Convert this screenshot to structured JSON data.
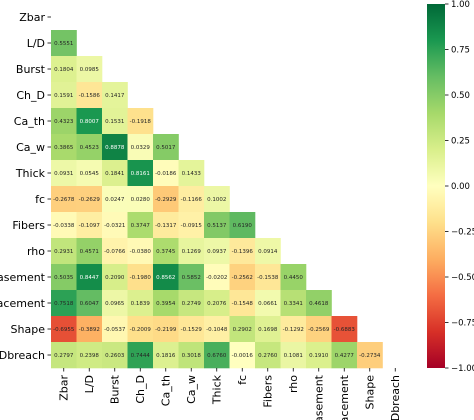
{
  "chart_data": {
    "type": "heatmap",
    "title": "",
    "xlabel": "",
    "ylabel": "",
    "variables": [
      "Zbar",
      "L/D",
      "Burst",
      "Ch_D",
      "Ca_th",
      "Ca_w",
      "Thick",
      "fc",
      "Fibers",
      "rho",
      "Casement",
      "Placement",
      "Shape",
      "Dbreach"
    ],
    "mask": "upper-triangle-including-diagonal",
    "lower_triangle": [
      [],
      [
        0.5551
      ],
      [
        0.1804,
        0.0985
      ],
      [
        0.1591,
        -0.1586,
        0.1417
      ],
      [
        0.4323,
        0.8007,
        0.1531,
        -0.1918
      ],
      [
        0.3865,
        0.4523,
        0.8878,
        0.0329,
        0.5017
      ],
      [
        0.0931,
        0.0545,
        0.1841,
        0.8161,
        -0.0186,
        0.1433
      ],
      [
        -0.2678,
        -0.2629,
        0.0247,
        0.028,
        -0.2929,
        -0.1166,
        0.1002
      ],
      [
        -0.0338,
        -0.1097,
        -0.0321,
        0.3747,
        -0.1317,
        -0.0915,
        0.5137,
        0.619
      ],
      [
        0.2931,
        0.4571,
        -0.0766,
        -0.038,
        0.3745,
        0.1269,
        0.0937,
        -0.1396,
        0.0914
      ],
      [
        0.5035,
        0.8447,
        0.209,
        -0.198,
        0.8562,
        0.5852,
        -0.0202,
        -0.2562,
        -0.1538,
        0.445
      ],
      [
        0.7518,
        0.6047,
        0.0965,
        0.1839,
        0.3954,
        0.2749,
        0.2076,
        -0.1548,
        0.0661,
        0.3341,
        0.4618
      ],
      [
        -0.6955,
        -0.3892,
        -0.0537,
        -0.2009,
        -0.2199,
        -0.1529,
        -0.1048,
        0.2902,
        0.1698,
        -0.1292,
        -0.2569,
        -0.6883
      ],
      [
        0.2797,
        0.2398,
        0.2603,
        0.7444,
        0.1816,
        0.3018,
        0.676,
        -0.0016,
        0.276,
        0.1081,
        0.191,
        0.4277,
        -0.2734
      ]
    ],
    "value_format": "4 decimals",
    "colorbar": {
      "colormap": "RdYlGn",
      "vmin": -1.0,
      "vmax": 1.0,
      "tick_labels": [
        "1.00",
        "0.75",
        "0.50",
        "0.25",
        "0.00",
        "−0.25",
        "−0.50",
        "−0.75",
        "−1.00"
      ],
      "tick_values": [
        1.0,
        0.75,
        0.5,
        0.25,
        0.0,
        -0.25,
        -0.5,
        -0.75,
        -1.0
      ]
    },
    "grid": false,
    "legend": "colorbar-right"
  }
}
